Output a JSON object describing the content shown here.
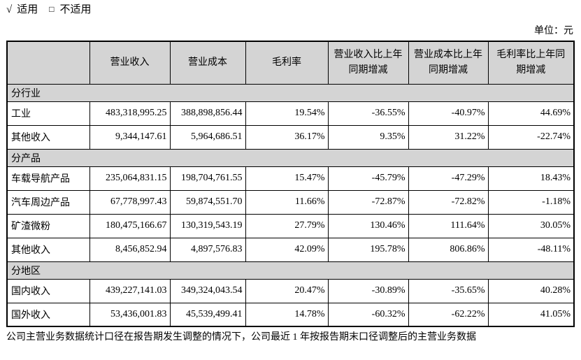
{
  "page": {
    "applicability": {
      "check_symbol": "√",
      "applicable_label": "适用",
      "box_symbol": "□",
      "not_applicable_label": "不适用"
    },
    "unit_label": "单位：元",
    "footnote": "公司主营业务数据统计口径在报告期发生调整的情况下，公司最近 1 年按报告期末口径调整后的主营业务数据"
  },
  "table": {
    "columns": [
      "",
      "营业收入",
      "营业成本",
      "毛利率",
      "营业收入比上年同期增减",
      "营业成本比上年同期增减",
      "毛利率比上年同期增减"
    ],
    "sections": [
      {
        "label": "分行业",
        "rows": [
          {
            "name": "工业",
            "values": [
              "483,318,995.25",
              "388,898,856.44",
              "19.54%",
              "-36.55%",
              "-40.97%",
              "44.69%"
            ]
          },
          {
            "name": "其他收入",
            "values": [
              "9,344,147.61",
              "5,964,686.51",
              "36.17%",
              "9.35%",
              "31.22%",
              "-22.74%"
            ]
          }
        ]
      },
      {
        "label": "分产品",
        "rows": [
          {
            "name": "车载导航产品",
            "values": [
              "235,064,831.15",
              "198,704,761.55",
              "15.47%",
              "-45.79%",
              "-47.29%",
              "18.43%"
            ]
          },
          {
            "name": "汽车周边产品",
            "values": [
              "67,778,997.43",
              "59,874,551.70",
              "11.66%",
              "-72.87%",
              "-72.82%",
              "-1.18%"
            ]
          },
          {
            "name": "矿渣微粉",
            "values": [
              "180,475,166.67",
              "130,319,543.19",
              "27.79%",
              "130.46%",
              "111.64%",
              "30.05%"
            ]
          },
          {
            "name": "其他收入",
            "values": [
              "8,456,852.94",
              "4,897,576.83",
              "42.09%",
              "195.78%",
              "806.86%",
              "-48.11%"
            ]
          }
        ]
      },
      {
        "label": "分地区",
        "rows": [
          {
            "name": "国内收入",
            "values": [
              "439,227,141.03",
              "349,324,043.54",
              "20.47%",
              "-30.89%",
              "-35.65%",
              "40.28%"
            ]
          },
          {
            "name": "国外收入",
            "values": [
              "53,436,001.83",
              "45,539,499.41",
              "14.78%",
              "-60.32%",
              "-62.22%",
              "41.05%"
            ]
          }
        ]
      }
    ]
  },
  "colors": {
    "band_bg": "#d4d4d4",
    "border": "#000000",
    "text": "#000000"
  }
}
